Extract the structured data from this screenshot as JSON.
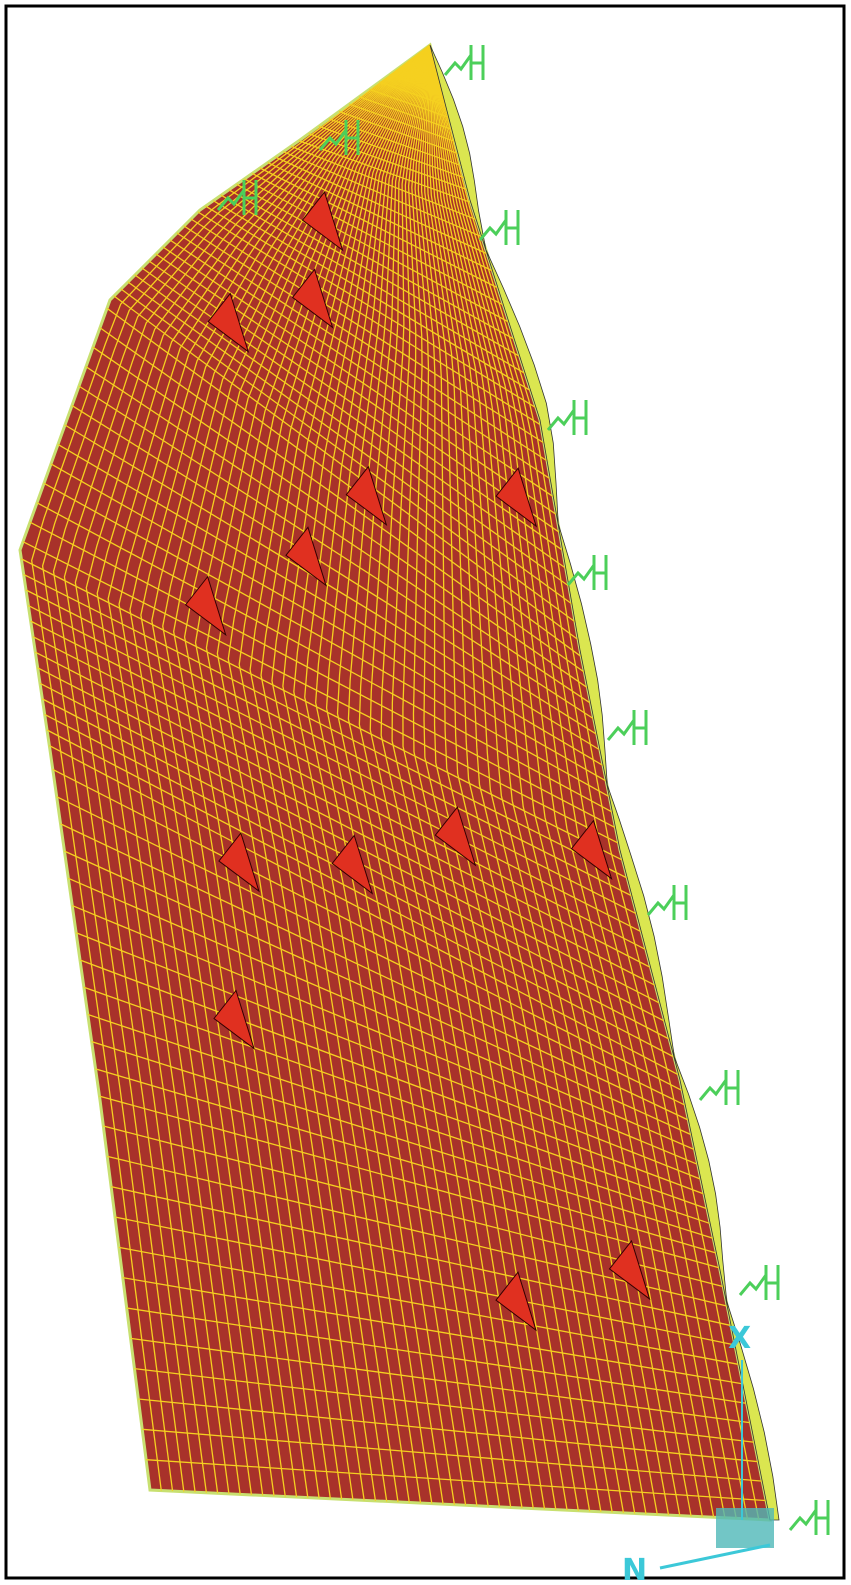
{
  "axes": {
    "x_label": "X",
    "n_label": "N"
  }
}
